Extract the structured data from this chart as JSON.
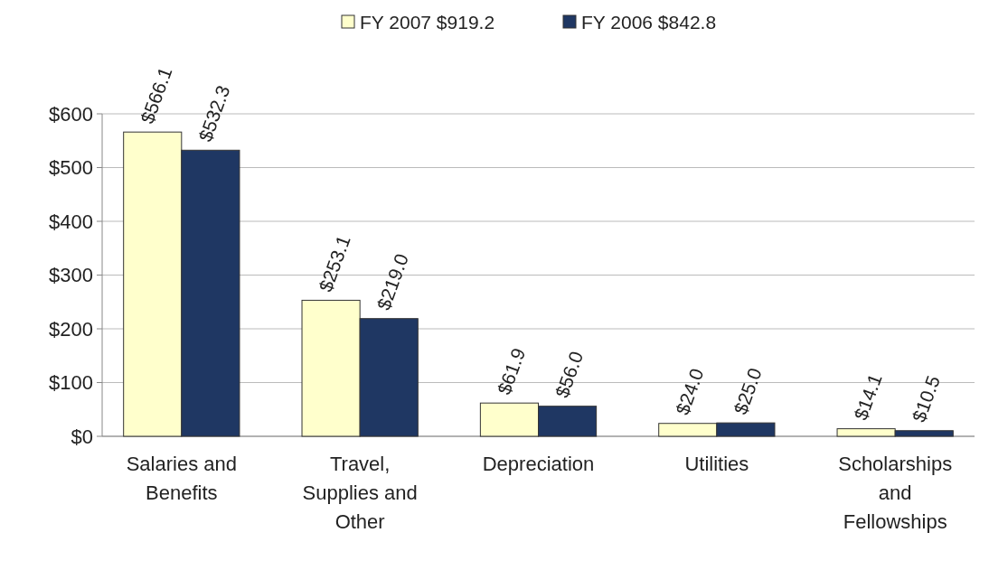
{
  "chart_data": {
    "type": "bar",
    "categories": [
      "Salaries and Benefits",
      "Travel, Supplies and Other",
      "Depreciation",
      "Utilities",
      "Scholarships and Fellowships"
    ],
    "series": [
      {
        "name": "FY 2007 $919.2",
        "color": "#ffffcc",
        "values": [
          566.1,
          253.1,
          61.9,
          24.0,
          14.1
        ],
        "value_labels": [
          "$566.1",
          "$253.1",
          "$61.9",
          "$24.0",
          "$14.1"
        ]
      },
      {
        "name": "FY 2006 $842.8",
        "color": "#1f3763",
        "values": [
          532.3,
          219.0,
          56.0,
          25.0,
          10.5
        ],
        "value_labels": [
          "$532.3",
          "$219.0",
          "$56.0",
          "$25.0",
          "$10.5"
        ]
      }
    ],
    "ylim": [
      0,
      600
    ],
    "yticks": [
      {
        "value": 0,
        "label": "$0"
      },
      {
        "value": 100,
        "label": "$100"
      },
      {
        "value": 200,
        "label": "$200"
      },
      {
        "value": 300,
        "label": "$300"
      },
      {
        "value": 400,
        "label": "$400"
      },
      {
        "value": 500,
        "label": "$500"
      },
      {
        "value": 600,
        "label": "$600"
      }
    ],
    "grid": "y",
    "legend": "top"
  }
}
